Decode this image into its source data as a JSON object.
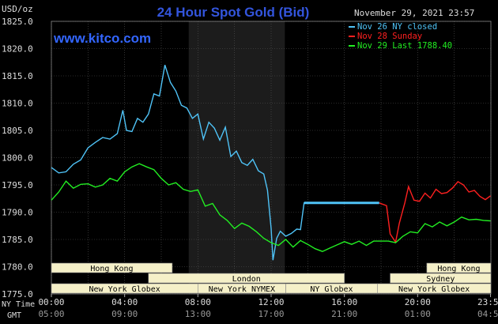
{
  "header": {
    "title": "24 Hour Spot Gold (Bid)",
    "datetime": "November 29, 2021 23:57",
    "brand": "www.kitco.com",
    "unit": "USD/oz"
  },
  "legend": [
    {
      "label": "Nov 26 NY closed",
      "color": "#4fc3f7"
    },
    {
      "label": "Nov 28 Sunday",
      "color": "#ff2020"
    },
    {
      "label": "Nov 29 Last 1788.40",
      "color": "#22ee22"
    }
  ],
  "axis": {
    "y_ticks": [
      "1825.0",
      "1820.0",
      "1815.0",
      "1810.0",
      "1805.0",
      "1800.0",
      "1795.0",
      "1790.0",
      "1785.0",
      "1780.0",
      "1775.0"
    ],
    "x_ticks_ny": [
      "00:00",
      "04:00",
      "08:00",
      "12:00",
      "16:00",
      "20:00",
      "23:59"
    ],
    "x_ticks_gmt": [
      "05:00",
      "09:00",
      "13:00",
      "17:00",
      "21:00",
      "01:00",
      "04:59"
    ],
    "ny_time_label": "NY Time",
    "gmt_label": "GMT"
  },
  "sessions": [
    {
      "label": "Hong Kong",
      "row": 0
    },
    {
      "label": "Hong Kong",
      "row": 0
    },
    {
      "label": "London",
      "row": 1
    },
    {
      "label": "Sydney",
      "row": 1
    },
    {
      "label": "New York Globex",
      "row": 2
    },
    {
      "label": "New York NYMEX",
      "row": 2
    },
    {
      "label": "NY Globex",
      "row": 2
    },
    {
      "label": "New York Globex",
      "row": 2
    }
  ],
  "colors": {
    "background": "#000000",
    "plot_bg": "#000000",
    "grid": "#555555",
    "shade": "#1c1c1c",
    "title": "#3355dd",
    "axis_text": "#dddddd",
    "session_fill": "#f5f0c8",
    "session_text": "#000000"
  },
  "chart_data": {
    "type": "line",
    "title": "24 Hour Spot Gold (Bid)",
    "ylabel": "USD/oz",
    "xlabel": "",
    "ylim": [
      1775.0,
      1825.0
    ],
    "xlim": [
      0,
      24
    ],
    "grid": true,
    "legend_position": "top-right",
    "x_tick_values": [
      0,
      4,
      8,
      12,
      16,
      20,
      23.98
    ],
    "shaded_region": [
      7.5,
      12.75
    ],
    "series": [
      {
        "name": "Nov 26 NY closed",
        "color": "#4fc3f7",
        "points": [
          [
            0,
            1798.2
          ],
          [
            0.4,
            1797.2
          ],
          [
            0.8,
            1797.4
          ],
          [
            1.2,
            1798.8
          ],
          [
            1.6,
            1799.6
          ],
          [
            2.0,
            1801.8
          ],
          [
            2.4,
            1802.8
          ],
          [
            2.8,
            1803.7
          ],
          [
            3.2,
            1803.4
          ],
          [
            3.6,
            1804.4
          ],
          [
            3.9,
            1808.7
          ],
          [
            4.1,
            1805.0
          ],
          [
            4.4,
            1804.8
          ],
          [
            4.7,
            1807.2
          ],
          [
            5.0,
            1806.5
          ],
          [
            5.3,
            1808.0
          ],
          [
            5.6,
            1811.7
          ],
          [
            5.9,
            1811.3
          ],
          [
            6.2,
            1817.0
          ],
          [
            6.5,
            1813.8
          ],
          [
            6.8,
            1812.2
          ],
          [
            7.1,
            1809.6
          ],
          [
            7.4,
            1809.1
          ],
          [
            7.7,
            1807.2
          ],
          [
            8.0,
            1808.0
          ],
          [
            8.3,
            1803.4
          ],
          [
            8.6,
            1806.5
          ],
          [
            8.9,
            1805.4
          ],
          [
            9.2,
            1803.2
          ],
          [
            9.5,
            1805.6
          ],
          [
            9.8,
            1800.2
          ],
          [
            10.1,
            1801.2
          ],
          [
            10.4,
            1799.1
          ],
          [
            10.7,
            1798.6
          ],
          [
            11.0,
            1799.7
          ],
          [
            11.3,
            1797.6
          ],
          [
            11.6,
            1797.0
          ],
          [
            11.8,
            1794.0
          ],
          [
            12.0,
            1787.0
          ],
          [
            12.1,
            1781.2
          ],
          [
            12.3,
            1785.2
          ],
          [
            12.5,
            1786.5
          ],
          [
            12.8,
            1785.6
          ],
          [
            13.1,
            1786.1
          ],
          [
            13.4,
            1786.9
          ],
          [
            13.6,
            1786.8
          ],
          [
            13.8,
            1791.7
          ],
          [
            14.2,
            1791.7
          ],
          [
            15.0,
            1791.7
          ],
          [
            16.0,
            1791.7
          ],
          [
            17.0,
            1791.7
          ],
          [
            17.9,
            1791.7
          ]
        ]
      },
      {
        "name": "Nov 28 Sunday",
        "color": "#ff2020",
        "points": [
          [
            17.9,
            1791.7
          ],
          [
            18.3,
            1791.2
          ],
          [
            18.5,
            1786.0
          ],
          [
            18.8,
            1784.5
          ],
          [
            19.0,
            1788.0
          ],
          [
            19.3,
            1791.7
          ],
          [
            19.5,
            1794.7
          ],
          [
            19.8,
            1792.2
          ],
          [
            20.1,
            1792.0
          ],
          [
            20.4,
            1793.5
          ],
          [
            20.7,
            1792.6
          ],
          [
            21.0,
            1794.2
          ],
          [
            21.3,
            1793.4
          ],
          [
            21.6,
            1793.6
          ],
          [
            21.9,
            1794.4
          ],
          [
            22.2,
            1795.6
          ],
          [
            22.5,
            1795.0
          ],
          [
            22.8,
            1793.7
          ],
          [
            23.1,
            1794.0
          ],
          [
            23.4,
            1792.9
          ],
          [
            23.7,
            1792.3
          ],
          [
            23.98,
            1793.0
          ]
        ]
      },
      {
        "name": "Nov 29 Last 1788.40",
        "color": "#22ee22",
        "points": [
          [
            0,
            1792.2
          ],
          [
            0.4,
            1793.7
          ],
          [
            0.8,
            1795.7
          ],
          [
            1.2,
            1794.4
          ],
          [
            1.6,
            1795.1
          ],
          [
            2.0,
            1795.2
          ],
          [
            2.4,
            1794.6
          ],
          [
            2.8,
            1795.0
          ],
          [
            3.2,
            1796.2
          ],
          [
            3.6,
            1795.7
          ],
          [
            4.0,
            1797.4
          ],
          [
            4.4,
            1798.3
          ],
          [
            4.8,
            1798.9
          ],
          [
            5.2,
            1798.3
          ],
          [
            5.6,
            1797.8
          ],
          [
            6.0,
            1796.2
          ],
          [
            6.4,
            1795.0
          ],
          [
            6.8,
            1795.4
          ],
          [
            7.2,
            1794.2
          ],
          [
            7.6,
            1793.8
          ],
          [
            8.0,
            1794.1
          ],
          [
            8.4,
            1791.1
          ],
          [
            8.8,
            1791.6
          ],
          [
            9.2,
            1789.5
          ],
          [
            9.6,
            1788.5
          ],
          [
            10.0,
            1787.0
          ],
          [
            10.4,
            1788.0
          ],
          [
            10.8,
            1787.4
          ],
          [
            11.2,
            1786.4
          ],
          [
            11.6,
            1785.2
          ],
          [
            12.0,
            1784.4
          ],
          [
            12.4,
            1783.9
          ],
          [
            12.8,
            1785.0
          ],
          [
            13.2,
            1783.6
          ],
          [
            13.6,
            1784.8
          ],
          [
            14.0,
            1784.1
          ],
          [
            14.4,
            1783.3
          ],
          [
            14.8,
            1782.8
          ],
          [
            15.2,
            1783.4
          ],
          [
            15.6,
            1784.0
          ],
          [
            16.0,
            1784.6
          ],
          [
            16.4,
            1784.1
          ],
          [
            16.8,
            1784.7
          ],
          [
            17.2,
            1783.9
          ],
          [
            17.6,
            1784.7
          ],
          [
            18.0,
            1784.7
          ],
          [
            18.4,
            1784.7
          ],
          [
            18.8,
            1784.4
          ],
          [
            19.2,
            1785.6
          ],
          [
            19.6,
            1786.4
          ],
          [
            20.0,
            1786.2
          ],
          [
            20.4,
            1787.9
          ],
          [
            20.8,
            1787.3
          ],
          [
            21.2,
            1788.2
          ],
          [
            21.6,
            1787.5
          ],
          [
            22.0,
            1788.2
          ],
          [
            22.4,
            1789.1
          ],
          [
            22.8,
            1788.6
          ],
          [
            23.2,
            1788.7
          ],
          [
            23.6,
            1788.5
          ],
          [
            23.98,
            1788.4
          ]
        ]
      }
    ]
  }
}
